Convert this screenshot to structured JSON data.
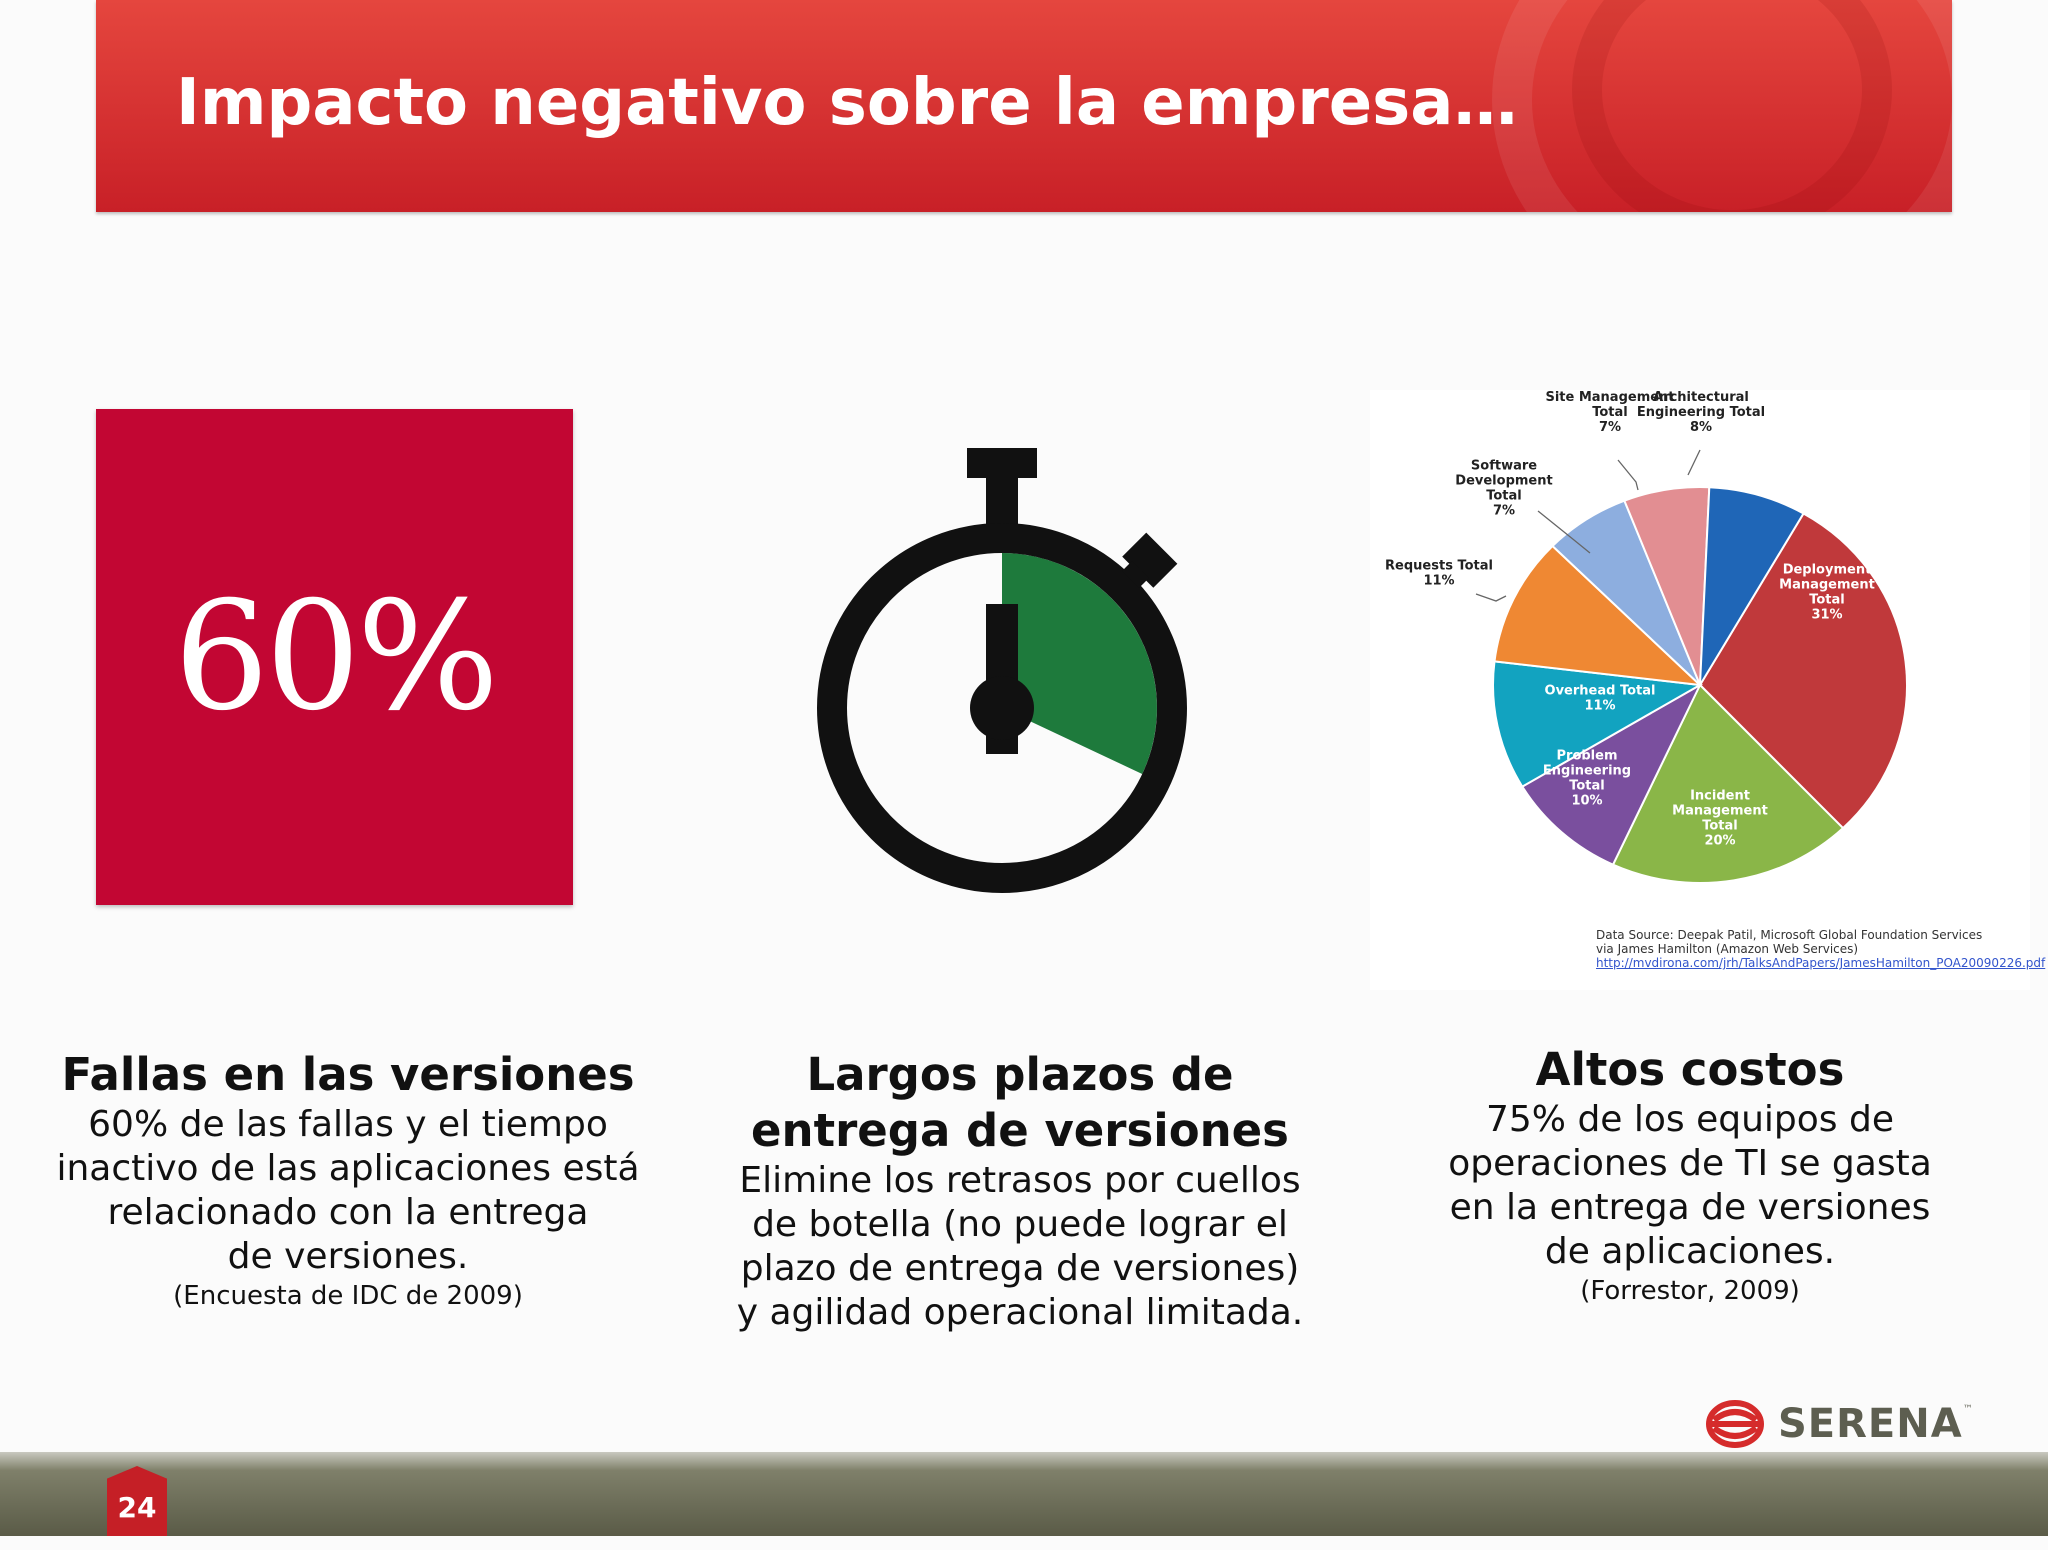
{
  "header": {
    "title": "Impacto negativo sobre la empresa…"
  },
  "stat": {
    "value": "60%"
  },
  "stopwatch": {
    "filled_fraction": 0.32
  },
  "chart_data": {
    "type": "pie",
    "slices": [
      {
        "label": [
          "Deployment",
          "Management",
          "Total"
        ],
        "value": 31,
        "pct_label": "31%",
        "color": "#c0393b"
      },
      {
        "label": [
          "Incident",
          "Management",
          "Total"
        ],
        "value": 20,
        "pct_label": "20%",
        "color": "#8ab648"
      },
      {
        "label": [
          "Problem",
          "Engineering",
          "Total"
        ],
        "value": 10,
        "pct_label": "10%",
        "color": "#7a4f9e"
      },
      {
        "label": [
          "Overhead Total"
        ],
        "value": 11,
        "pct_label": "11%",
        "color": "#12a3c0"
      },
      {
        "label": [
          "Requests Total"
        ],
        "value": 11,
        "pct_label": "11%",
        "color": "#ef8833"
      },
      {
        "label": [
          "Software",
          "Development",
          "Total"
        ],
        "value": 7,
        "pct_label": "7%",
        "color": "#8daedf"
      },
      {
        "label": [
          "Site Management",
          "Total"
        ],
        "value": 7,
        "pct_label": "7%",
        "color": "#e28e92"
      },
      {
        "label": [
          "Architectural",
          "Engineering Total"
        ],
        "value": 8,
        "pct_label": "8%",
        "color": "#1f66b7"
      }
    ],
    "source": [
      "Data Source: Deepak Patil, Microsoft Global  Foundation Services",
      "via James Hamilton (Amazon Web Services)",
      "http://mvdirona.com/jrh/TalksAndPapers/JamesHamilton_POA20090226.pdf"
    ]
  },
  "columns": [
    {
      "heading": "Fallas en las versiones",
      "body": [
        "60% de las fallas y el tiempo",
        "inactivo de las aplicaciones está",
        "relacionado con la entrega",
        "de versiones."
      ],
      "source": "(Encuesta de IDC de 2009)"
    },
    {
      "heading": [
        "Largos plazos de",
        "entrega de versiones"
      ],
      "body": [
        "Elimine los retrasos por cuellos",
        "de botella (no puede lograr el",
        "plazo de entrega de versiones)",
        "y agilidad operacional limitada."
      ]
    },
    {
      "heading": "Altos costos",
      "body": [
        "75% de los equipos de",
        "operaciones de TI se gasta",
        "en la entrega de versiones",
        "de aplicaciones."
      ],
      "source": "(Forrestor, 2009)"
    }
  ],
  "footer": {
    "page_number": "24",
    "brand": "SERENA",
    "brand_mark": "™"
  }
}
